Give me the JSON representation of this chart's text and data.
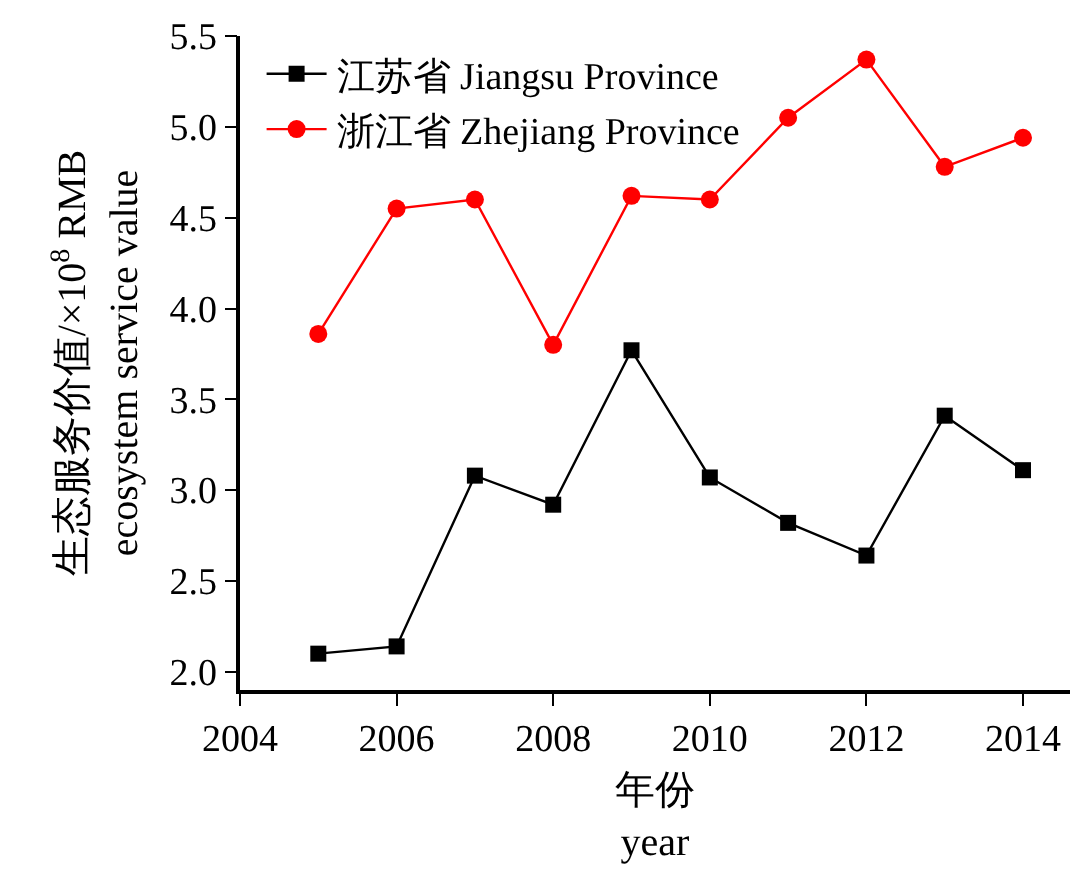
{
  "chart_data": {
    "type": "line",
    "xlabel": "年份\nyear",
    "ylabel": "生态服务价值/×10$^{8}$ RMB\necosystem service value",
    "x": [
      2005,
      2006,
      2007,
      2008,
      2009,
      2010,
      2011,
      2012,
      2013,
      2014
    ],
    "series": [
      {
        "name": "江苏省 Jiangsu Province",
        "color": "#000000",
        "marker": "square",
        "values": [
          2.1,
          2.14,
          3.08,
          2.92,
          3.77,
          3.07,
          2.82,
          2.64,
          3.41,
          3.11
        ]
      },
      {
        "name": "浙江省 Zhejiang Province",
        "color": "#ff0000",
        "marker": "circle",
        "values": [
          3.86,
          4.55,
          4.6,
          3.8,
          4.62,
          4.6,
          5.05,
          5.37,
          4.78,
          4.94
        ]
      }
    ],
    "xlim": [
      2004,
      2014.6
    ],
    "xticks": [
      2004,
      2006,
      2008,
      2010,
      2012,
      2014
    ],
    "ylim": [
      1.9,
      5.5
    ],
    "yticks": [
      {
        "value": 2.0,
        "label": "2.0"
      },
      {
        "value": 2.5,
        "label": "2.5"
      },
      {
        "value": 3.0,
        "label": "3.0"
      },
      {
        "value": 3.5,
        "label": "3.5"
      },
      {
        "value": 4.0,
        "label": "4.0"
      },
      {
        "value": 4.5,
        "label": "4.5"
      },
      {
        "value": 5.0,
        "label": "5.0"
      },
      {
        "value": 5.5,
        "label": "5.5"
      }
    ],
    "legend": "top left",
    "line_style": "solid"
  }
}
